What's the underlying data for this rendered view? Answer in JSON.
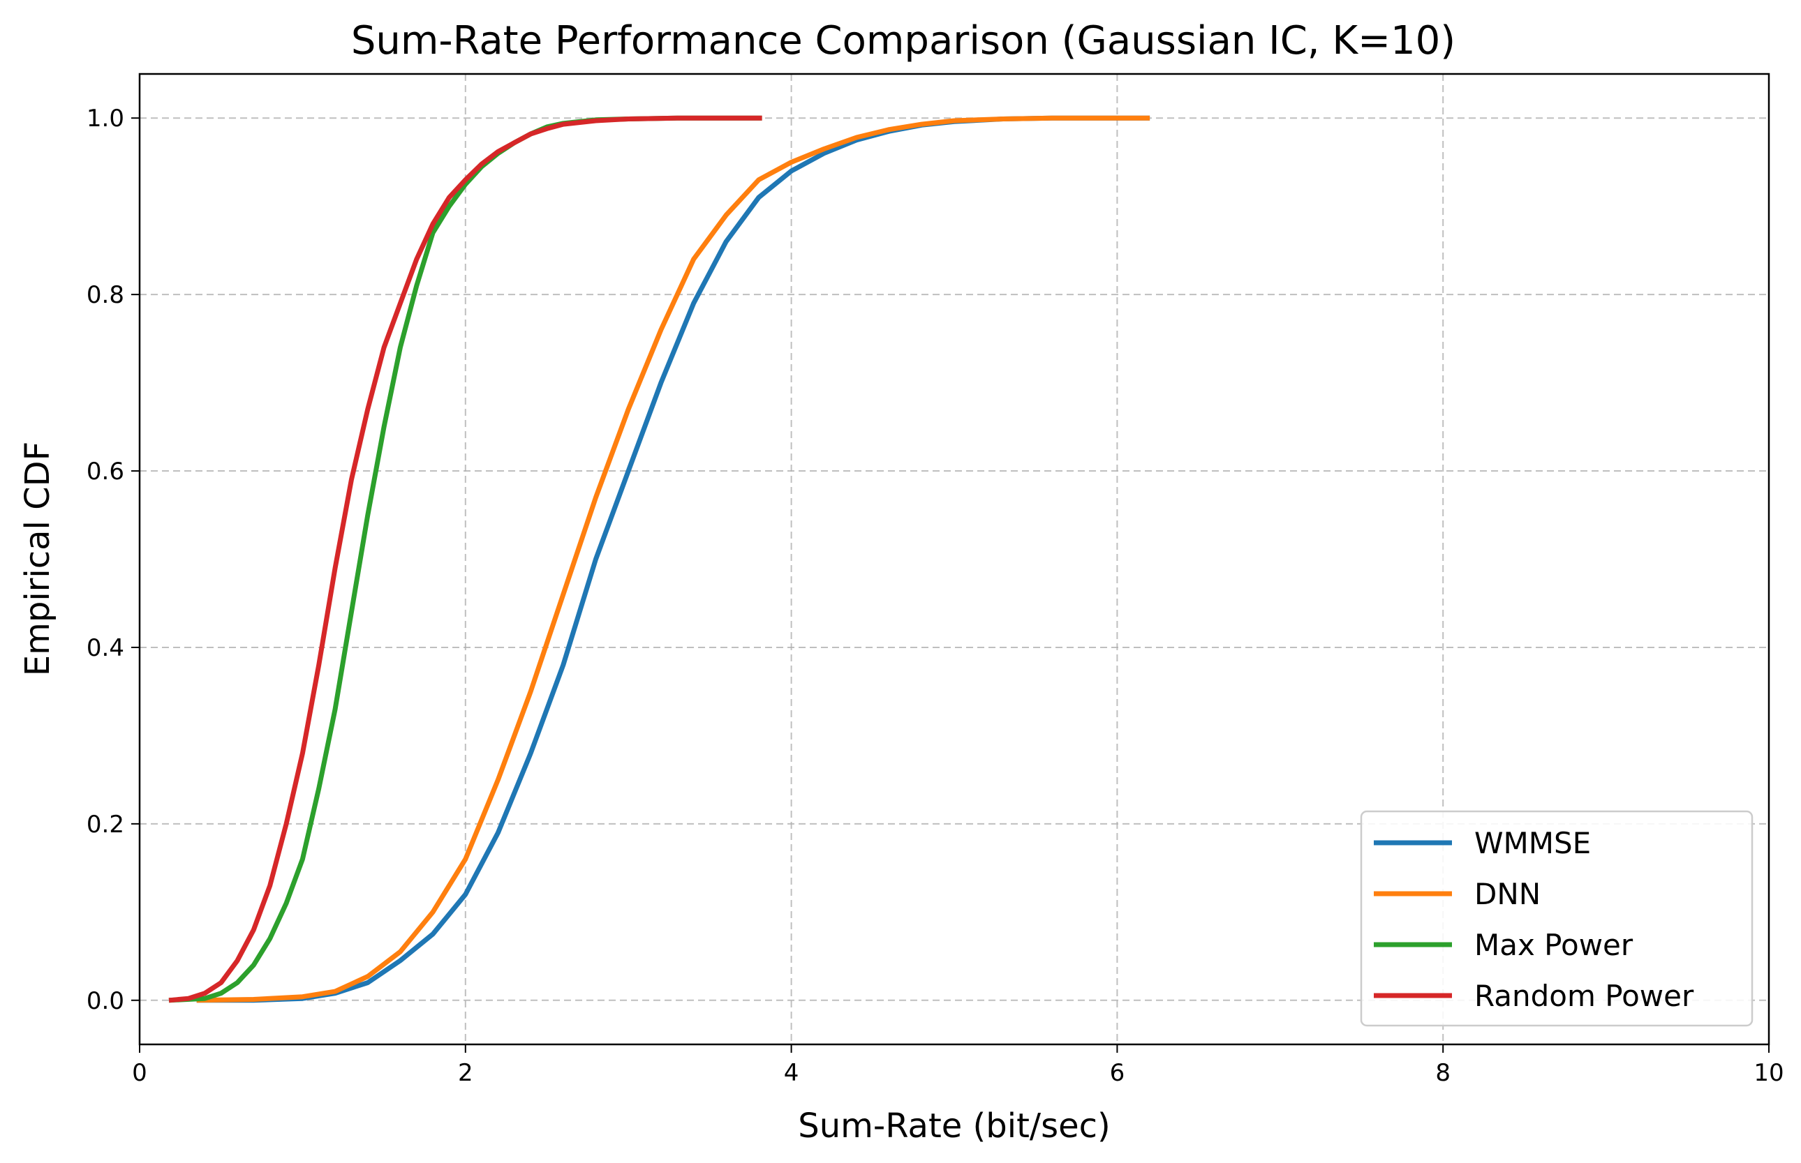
{
  "chart_data": {
    "type": "line",
    "title": "Sum-Rate Performance Comparison (Gaussian IC, K=10)",
    "xlabel": "Sum-Rate (bit/sec)",
    "ylabel": "Empirical CDF",
    "xlim": [
      0,
      10
    ],
    "ylim": [
      -0.05,
      1.05
    ],
    "xticks": [
      0,
      2,
      4,
      6,
      8,
      10
    ],
    "xtick_labels": [
      "0",
      "2",
      "4",
      "6",
      "8",
      "10"
    ],
    "yticks": [
      0.0,
      0.2,
      0.4,
      0.6,
      0.8,
      1.0
    ],
    "ytick_labels": [
      "0.0",
      "0.2",
      "0.4",
      "0.6",
      "0.8",
      "1.0"
    ],
    "grid": true,
    "legend_position": "lower right",
    "series": [
      {
        "name": "WMMSE",
        "color": "#1f77b4",
        "x": [
          0.35,
          0.7,
          1.0,
          1.2,
          1.4,
          1.6,
          1.8,
          2.0,
          2.2,
          2.4,
          2.6,
          2.8,
          3.0,
          3.2,
          3.4,
          3.6,
          3.8,
          4.0,
          4.2,
          4.4,
          4.6,
          4.8,
          5.0,
          5.3,
          5.6,
          6.2
        ],
        "y": [
          0.0,
          0.0,
          0.002,
          0.008,
          0.02,
          0.045,
          0.075,
          0.12,
          0.19,
          0.28,
          0.38,
          0.5,
          0.6,
          0.7,
          0.79,
          0.86,
          0.91,
          0.94,
          0.96,
          0.975,
          0.985,
          0.992,
          0.996,
          0.999,
          1.0,
          1.0
        ]
      },
      {
        "name": "DNN",
        "color": "#ff7f0e",
        "x": [
          0.35,
          0.7,
          1.0,
          1.2,
          1.4,
          1.6,
          1.8,
          2.0,
          2.2,
          2.4,
          2.6,
          2.8,
          3.0,
          3.2,
          3.4,
          3.6,
          3.8,
          4.0,
          4.2,
          4.4,
          4.6,
          4.8,
          5.0,
          5.3,
          5.6,
          6.2
        ],
        "y": [
          0.0,
          0.001,
          0.004,
          0.01,
          0.027,
          0.055,
          0.1,
          0.16,
          0.25,
          0.35,
          0.46,
          0.57,
          0.67,
          0.76,
          0.84,
          0.89,
          0.93,
          0.95,
          0.965,
          0.978,
          0.987,
          0.993,
          0.997,
          0.999,
          1.0,
          1.0
        ]
      },
      {
        "name": "Max Power",
        "color": "#2ca02c",
        "x": [
          0.18,
          0.4,
          0.5,
          0.6,
          0.7,
          0.8,
          0.9,
          1.0,
          1.1,
          1.2,
          1.3,
          1.4,
          1.5,
          1.6,
          1.7,
          1.8,
          1.9,
          2.0,
          2.1,
          2.2,
          2.3,
          2.4,
          2.5,
          2.6,
          2.8,
          3.0,
          3.3,
          3.82
        ],
        "y": [
          0.0,
          0.002,
          0.008,
          0.02,
          0.04,
          0.07,
          0.11,
          0.16,
          0.24,
          0.33,
          0.44,
          0.55,
          0.65,
          0.74,
          0.81,
          0.87,
          0.9,
          0.925,
          0.945,
          0.96,
          0.972,
          0.982,
          0.99,
          0.994,
          0.998,
          0.999,
          1.0,
          1.0
        ]
      },
      {
        "name": "Random Power",
        "color": "#d62728",
        "x": [
          0.18,
          0.3,
          0.4,
          0.5,
          0.6,
          0.7,
          0.8,
          0.9,
          1.0,
          1.1,
          1.2,
          1.3,
          1.4,
          1.5,
          1.6,
          1.7,
          1.8,
          1.9,
          2.0,
          2.1,
          2.2,
          2.3,
          2.4,
          2.5,
          2.6,
          2.8,
          3.0,
          3.3,
          3.82
        ],
        "y": [
          0.0,
          0.002,
          0.008,
          0.02,
          0.045,
          0.08,
          0.13,
          0.2,
          0.28,
          0.38,
          0.49,
          0.59,
          0.67,
          0.74,
          0.79,
          0.84,
          0.88,
          0.91,
          0.93,
          0.948,
          0.962,
          0.972,
          0.982,
          0.988,
          0.993,
          0.997,
          0.999,
          1.0,
          1.0
        ]
      }
    ]
  }
}
